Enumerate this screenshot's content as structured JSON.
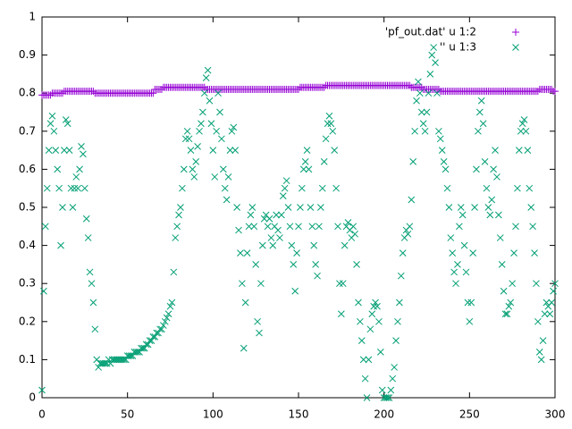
{
  "chart_data": {
    "type": "scatter",
    "x": [
      0,
      1,
      2,
      3,
      4,
      5,
      6,
      7,
      8,
      9,
      10,
      11,
      12,
      13,
      14,
      15,
      16,
      17,
      18,
      19,
      20,
      21,
      22,
      23,
      24,
      25,
      26,
      27,
      28,
      29,
      30,
      31,
      32,
      33,
      34,
      35,
      36,
      37,
      38,
      39,
      40,
      41,
      42,
      43,
      44,
      45,
      46,
      47,
      48,
      49,
      50,
      51,
      52,
      53,
      54,
      55,
      56,
      57,
      58,
      59,
      60,
      61,
      62,
      63,
      64,
      65,
      66,
      67,
      68,
      69,
      70,
      71,
      72,
      73,
      74,
      75,
      76,
      77,
      78,
      79,
      80,
      81,
      82,
      83,
      84,
      85,
      86,
      87,
      88,
      89,
      90,
      91,
      92,
      93,
      94,
      95,
      96,
      97,
      98,
      99,
      100,
      101,
      102,
      103,
      104,
      105,
      106,
      107,
      108,
      109,
      110,
      111,
      112,
      113,
      114,
      115,
      116,
      117,
      118,
      119,
      120,
      121,
      122,
      123,
      124,
      125,
      126,
      127,
      128,
      129,
      130,
      131,
      132,
      133,
      134,
      135,
      136,
      137,
      138,
      139,
      140,
      141,
      142,
      143,
      144,
      145,
      146,
      147,
      148,
      149,
      150,
      151,
      152,
      153,
      154,
      155,
      156,
      157,
      158,
      159,
      160,
      161,
      162,
      163,
      164,
      165,
      166,
      167,
      168,
      169,
      170,
      171,
      172,
      173,
      174,
      175,
      176,
      177,
      178,
      179,
      180,
      181,
      182,
      183,
      184,
      185,
      186,
      187,
      188,
      189,
      190,
      191,
      192,
      193,
      194,
      195,
      196,
      197,
      198,
      199,
      200,
      201,
      202,
      203,
      204,
      205,
      206,
      207,
      208,
      209,
      210,
      211,
      212,
      213,
      214,
      215,
      216,
      217,
      218,
      219,
      220,
      221,
      222,
      223,
      224,
      225,
      226,
      227,
      228,
      229,
      230,
      231,
      232,
      233,
      234,
      235,
      236,
      237,
      238,
      239,
      240,
      241,
      242,
      243,
      244,
      245,
      246,
      247,
      248,
      249,
      250,
      251,
      252,
      253,
      254,
      255,
      256,
      257,
      258,
      259,
      260,
      261,
      262,
      263,
      264,
      265,
      266,
      267,
      268,
      269,
      270,
      271,
      272,
      273,
      274,
      275,
      276,
      277,
      278,
      279,
      280,
      281,
      282,
      283,
      284,
      285,
      286,
      287,
      288,
      289,
      290,
      291,
      292,
      293,
      294,
      295,
      296,
      297,
      298,
      299,
      300
    ],
    "series": [
      {
        "name": "'pf_out.dat' u 1:2",
        "color": "#9400d3",
        "marker": "plus",
        "values": [
          0.795,
          0.795,
          0.795,
          0.795,
          0.795,
          0.795,
          0.8,
          0.8,
          0.8,
          0.8,
          0.8,
          0.8,
          0.8,
          0.805,
          0.805,
          0.805,
          0.805,
          0.805,
          0.805,
          0.805,
          0.805,
          0.805,
          0.805,
          0.805,
          0.805,
          0.805,
          0.805,
          0.805,
          0.805,
          0.805,
          0.805,
          0.8,
          0.8,
          0.8,
          0.8,
          0.8,
          0.8,
          0.8,
          0.8,
          0.8,
          0.8,
          0.8,
          0.8,
          0.8,
          0.8,
          0.8,
          0.8,
          0.8,
          0.8,
          0.8,
          0.8,
          0.8,
          0.8,
          0.8,
          0.8,
          0.8,
          0.8,
          0.8,
          0.8,
          0.8,
          0.8,
          0.8,
          0.8,
          0.8,
          0.8,
          0.8,
          0.81,
          0.81,
          0.81,
          0.81,
          0.81,
          0.815,
          0.815,
          0.815,
          0.815,
          0.815,
          0.815,
          0.815,
          0.815,
          0.815,
          0.815,
          0.815,
          0.815,
          0.815,
          0.815,
          0.815,
          0.815,
          0.815,
          0.815,
          0.815,
          0.815,
          0.815,
          0.815,
          0.815,
          0.815,
          0.815,
          0.81,
          0.81,
          0.81,
          0.81,
          0.81,
          0.81,
          0.81,
          0.81,
          0.81,
          0.81,
          0.81,
          0.81,
          0.81,
          0.81,
          0.81,
          0.81,
          0.81,
          0.81,
          0.81,
          0.81,
          0.81,
          0.81,
          0.81,
          0.81,
          0.81,
          0.81,
          0.81,
          0.81,
          0.81,
          0.81,
          0.81,
          0.81,
          0.81,
          0.81,
          0.81,
          0.81,
          0.81,
          0.81,
          0.81,
          0.81,
          0.81,
          0.81,
          0.81,
          0.81,
          0.81,
          0.81,
          0.81,
          0.81,
          0.81,
          0.81,
          0.81,
          0.81,
          0.81,
          0.81,
          0.81,
          0.815,
          0.815,
          0.815,
          0.815,
          0.815,
          0.815,
          0.815,
          0.815,
          0.815,
          0.815,
          0.815,
          0.815,
          0.815,
          0.815,
          0.815,
          0.82,
          0.82,
          0.82,
          0.82,
          0.82,
          0.82,
          0.82,
          0.82,
          0.82,
          0.82,
          0.82,
          0.82,
          0.82,
          0.82,
          0.82,
          0.82,
          0.82,
          0.82,
          0.82,
          0.82,
          0.82,
          0.82,
          0.82,
          0.82,
          0.82,
          0.82,
          0.82,
          0.82,
          0.82,
          0.82,
          0.82,
          0.82,
          0.82,
          0.82,
          0.82,
          0.82,
          0.82,
          0.82,
          0.82,
          0.82,
          0.82,
          0.82,
          0.82,
          0.82,
          0.82,
          0.82,
          0.82,
          0.82,
          0.82,
          0.82,
          0.815,
          0.815,
          0.815,
          0.815,
          0.815,
          0.815,
          0.815,
          0.81,
          0.81,
          0.81,
          0.81,
          0.81,
          0.81,
          0.81,
          0.81,
          0.81,
          0.81,
          0.805,
          0.805,
          0.805,
          0.805,
          0.805,
          0.805,
          0.805,
          0.805,
          0.805,
          0.805,
          0.805,
          0.805,
          0.805,
          0.805,
          0.805,
          0.805,
          0.805,
          0.805,
          0.805,
          0.805,
          0.805,
          0.805,
          0.805,
          0.805,
          0.805,
          0.805,
          0.805,
          0.805,
          0.805,
          0.805,
          0.805,
          0.805,
          0.805,
          0.805,
          0.805,
          0.805,
          0.805,
          0.805,
          0.805,
          0.805,
          0.805,
          0.805,
          0.805,
          0.805,
          0.805,
          0.805,
          0.805,
          0.805,
          0.805,
          0.805,
          0.805,
          0.805,
          0.805,
          0.805,
          0.805,
          0.805,
          0.805,
          0.805,
          0.81,
          0.81,
          0.81,
          0.81,
          0.81,
          0.81,
          0.81,
          0.81,
          0.805,
          0.805
        ]
      },
      {
        "name": "'' u 1:3",
        "color": "#009e73",
        "marker": "cross",
        "values": [
          0.02,
          0.28,
          0.45,
          0.55,
          0.65,
          0.72,
          0.74,
          0.7,
          0.65,
          0.6,
          0.55,
          0.4,
          0.5,
          0.65,
          0.73,
          0.72,
          0.65,
          0.55,
          0.5,
          0.55,
          0.58,
          0.55,
          0.6,
          0.66,
          0.64,
          0.55,
          0.47,
          0.42,
          0.33,
          0.3,
          0.25,
          0.18,
          0.1,
          0.08,
          0.09,
          0.09,
          0.09,
          0.09,
          0.09,
          0.1,
          0.09,
          0.1,
          0.1,
          0.1,
          0.1,
          0.1,
          0.1,
          0.1,
          0.1,
          0.1,
          0.11,
          0.11,
          0.11,
          0.11,
          0.12,
          0.12,
          0.12,
          0.12,
          0.13,
          0.13,
          0.13,
          0.14,
          0.14,
          0.15,
          0.15,
          0.16,
          0.16,
          0.17,
          0.17,
          0.18,
          0.18,
          0.19,
          0.2,
          0.21,
          0.22,
          0.24,
          0.25,
          0.33,
          0.42,
          0.45,
          0.48,
          0.5,
          0.55,
          0.6,
          0.68,
          0.7,
          0.68,
          0.65,
          0.6,
          0.58,
          0.62,
          0.66,
          0.7,
          0.72,
          0.75,
          0.8,
          0.84,
          0.86,
          0.78,
          0.72,
          0.65,
          0.58,
          0.7,
          0.8,
          0.75,
          0.68,
          0.6,
          0.55,
          0.52,
          0.58,
          0.65,
          0.7,
          0.71,
          0.65,
          0.5,
          0.44,
          0.38,
          0.3,
          0.13,
          0.25,
          0.38,
          0.45,
          0.48,
          0.5,
          0.45,
          0.35,
          0.2,
          0.17,
          0.3,
          0.4,
          0.47,
          0.48,
          0.45,
          0.47,
          0.42,
          0.4,
          0.45,
          0.48,
          0.44,
          0.42,
          0.48,
          0.53,
          0.55,
          0.57,
          0.5,
          0.45,
          0.4,
          0.35,
          0.28,
          0.38,
          0.45,
          0.5,
          0.55,
          0.6,
          0.62,
          0.65,
          0.6,
          0.5,
          0.45,
          0.4,
          0.35,
          0.32,
          0.45,
          0.5,
          0.55,
          0.62,
          0.68,
          0.72,
          0.74,
          0.72,
          0.7,
          0.65,
          0.55,
          0.45,
          0.3,
          0.22,
          0.3,
          0.4,
          0.45,
          0.46,
          0.44,
          0.42,
          0.45,
          0.43,
          0.35,
          0.25,
          0.2,
          0.15,
          0.1,
          0.05,
          0,
          0.1,
          0.18,
          0.22,
          0.24,
          0.25,
          0.24,
          0.2,
          0.12,
          0.02,
          0,
          0,
          0,
          0,
          0.02,
          0.05,
          0.08,
          0.15,
          0.2,
          0.25,
          0.32,
          0.38,
          0.42,
          0.44,
          0.43,
          0.45,
          0.52,
          0.62,
          0.7,
          0.78,
          0.83,
          0.8,
          0.75,
          0.72,
          0.7,
          0.75,
          0.8,
          0.85,
          0.9,
          0.92,
          0.88,
          0.8,
          0.7,
          0.68,
          0.65,
          0.62,
          0.6,
          0.55,
          0.5,
          0.42,
          0.38,
          0.33,
          0.3,
          0.35,
          0.45,
          0.5,
          0.48,
          0.4,
          0.33,
          0.25,
          0.2,
          0.25,
          0.38,
          0.5,
          0.6,
          0.7,
          0.75,
          0.78,
          0.72,
          0.62,
          0.55,
          0.5,
          0.48,
          0.52,
          0.6,
          0.65,
          0.58,
          0.48,
          0.42,
          0.35,
          0.28,
          0.22,
          0.22,
          0.24,
          0.25,
          0.3,
          0.38,
          0.45,
          0.55,
          0.65,
          0.7,
          0.72,
          0.73,
          0.7,
          0.65,
          0.55,
          0.5,
          0.45,
          0.38,
          0.3,
          0.2,
          0.12,
          0.1,
          0.15,
          0.22,
          0.25,
          0.24,
          0.22,
          0.25,
          0.28,
          0.3
        ]
      }
    ],
    "xlim": [
      0,
      300
    ],
    "xticks": [
      0,
      50,
      100,
      150,
      200,
      250,
      300
    ],
    "ylim": [
      0,
      1
    ],
    "yticks": [
      0,
      0.1,
      0.2,
      0.3,
      0.4,
      0.5,
      0.6,
      0.7,
      0.8,
      0.9,
      1
    ],
    "grid": false,
    "legend": "top-right"
  }
}
